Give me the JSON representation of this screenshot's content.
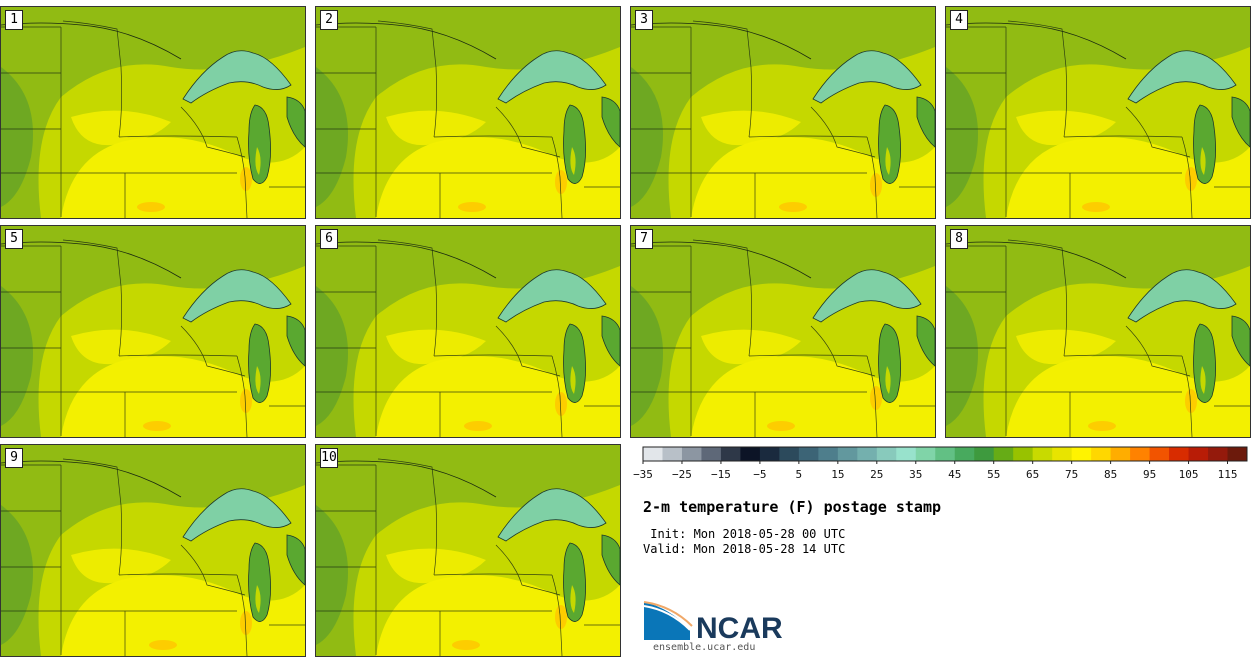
{
  "product": {
    "title": "2-m temperature (F) postage stamp",
    "init_line": " Init: Mon 2018-05-28 00 UTC",
    "valid_line": "Valid: Mon 2018-05-28 14 UTC"
  },
  "members": [
    "1",
    "2",
    "3",
    "4",
    "5",
    "6",
    "7",
    "8",
    "9",
    "10"
  ],
  "colorbar": {
    "tick_labels": [
      "−35",
      "−25",
      "−15",
      "−5",
      "5",
      "15",
      "25",
      "35",
      "45",
      "55",
      "65",
      "75",
      "85",
      "95",
      "105",
      "115"
    ],
    "colors": [
      "#e2e6ea",
      "#b8c0c8",
      "#8c96a2",
      "#5e6878",
      "#2e3848",
      "#0c1426",
      "#1a2a3e",
      "#2c4a5c",
      "#3c6476",
      "#4e7e8c",
      "#62989e",
      "#74b0ae",
      "#88cabc",
      "#98e2cc",
      "#80d4a8",
      "#62c084",
      "#48aa5e",
      "#3e9a3e",
      "#66ac16",
      "#98c200",
      "#c8da00",
      "#e8e400",
      "#fff300",
      "#ffd700",
      "#ffad00",
      "#ff8200",
      "#f25400",
      "#d82c00",
      "#b81c06",
      "#941a0c",
      "#6c1a0c"
    ]
  },
  "logo": {
    "name": "NCAR",
    "site": "ensemble.ucar.edu"
  },
  "colors": {
    "background": "#ffffff",
    "land_warm": "#f3f000",
    "land_mid": "#c5d800",
    "land_cool": "#7fb11a",
    "lake": "#7fd0a5"
  }
}
